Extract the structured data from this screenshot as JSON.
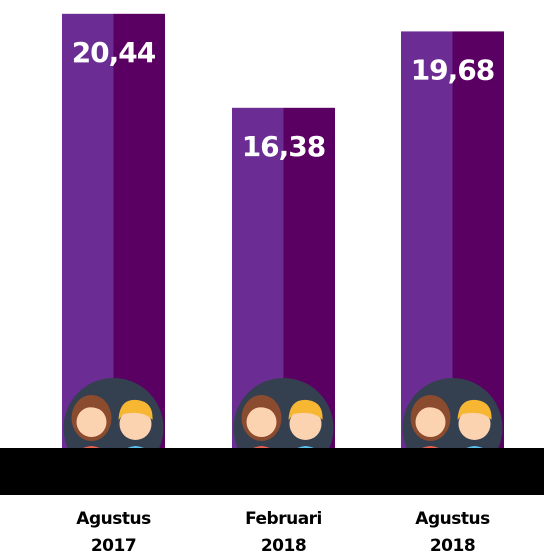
{
  "chart_data": {
    "type": "bar",
    "categories": [
      "Agustus 2017",
      "Februari 2018",
      "Agustus 2018"
    ],
    "values": [
      20.44,
      16.38,
      19.68
    ],
    "value_labels": [
      "20,44",
      "16,38",
      "19,68"
    ],
    "color": "#6b2d93"
  }
}
